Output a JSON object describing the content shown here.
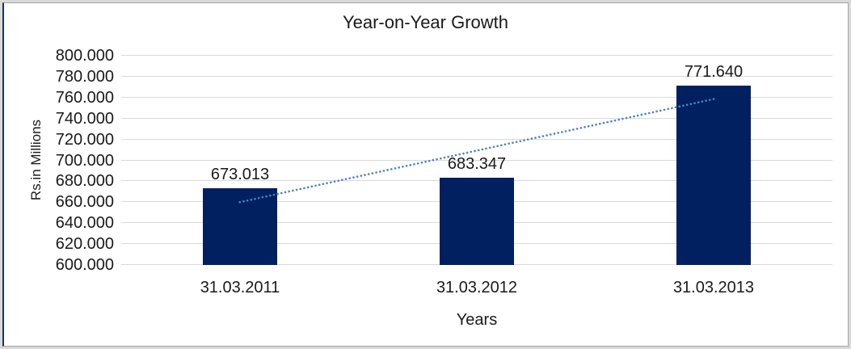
{
  "frame": {
    "outer_color": "#d9d9d9",
    "inner_color": "#a3a3a3",
    "left_accent_color": "#17365d"
  },
  "chart_data": {
    "type": "bar",
    "title": "Year-on-Year Growth",
    "xlabel": "Years",
    "ylabel": "Rs.in Millions",
    "categories": [
      "31.03.2011",
      "31.03.2012",
      "31.03.2013"
    ],
    "values": [
      673013,
      683347,
      771640
    ],
    "data_labels": [
      "673.013",
      "683.347",
      "771.640"
    ],
    "ylim": [
      600000,
      800000
    ],
    "ytick_step": 20000,
    "ytick_labels": [
      "600.000",
      "620.000",
      "640.000",
      "660.000",
      "680.000",
      "700.000",
      "720.000",
      "740.000",
      "760.000",
      "780.000",
      "800.000"
    ],
    "grid": "horizontal",
    "legend": "none",
    "bar_color": "#002060",
    "gridline_color": "#d9d9d9",
    "text_color": "#1a1a1a",
    "background_color": "#ffffff",
    "trendline": {
      "type": "linear",
      "style": "dotted",
      "color": "#4e82c2",
      "start_value": 660020,
      "end_value": 758647
    }
  }
}
